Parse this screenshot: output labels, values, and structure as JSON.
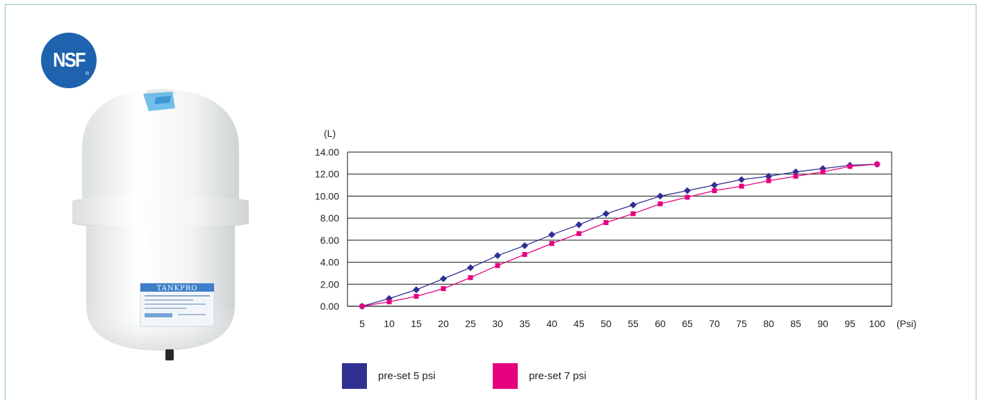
{
  "logo": {
    "text": "NSF",
    "mark": "®"
  },
  "product": {
    "label": "TANKPRO"
  },
  "chart_data": {
    "type": "line",
    "ylabel": "(L)",
    "xunit": "(Psi)",
    "x": [
      5,
      10,
      15,
      20,
      25,
      30,
      35,
      40,
      45,
      50,
      55,
      60,
      65,
      70,
      75,
      80,
      85,
      90,
      95,
      100
    ],
    "ylim": [
      0,
      14
    ],
    "yticks": [
      "0.00",
      "2.00",
      "4.00",
      "6.00",
      "8.00",
      "10.00",
      "12.00",
      "14.00"
    ],
    "grid": true,
    "legend_position": "bottom",
    "series": [
      {
        "name": "pre-set 5 psi",
        "color": "#2e3192",
        "marker": "diamond",
        "values": [
          0.0,
          0.7,
          1.5,
          2.5,
          3.5,
          4.6,
          5.5,
          6.5,
          7.4,
          8.4,
          9.2,
          10.0,
          10.5,
          11.0,
          11.5,
          11.8,
          12.2,
          12.5,
          12.8,
          12.9
        ]
      },
      {
        "name": "pre-set 7 psi",
        "color": "#e6007e",
        "marker": "square",
        "values": [
          0.0,
          0.4,
          0.9,
          1.6,
          2.6,
          3.7,
          4.7,
          5.7,
          6.6,
          7.6,
          8.4,
          9.3,
          9.9,
          10.5,
          10.9,
          11.4,
          11.8,
          12.2,
          12.7,
          12.9
        ]
      }
    ]
  }
}
